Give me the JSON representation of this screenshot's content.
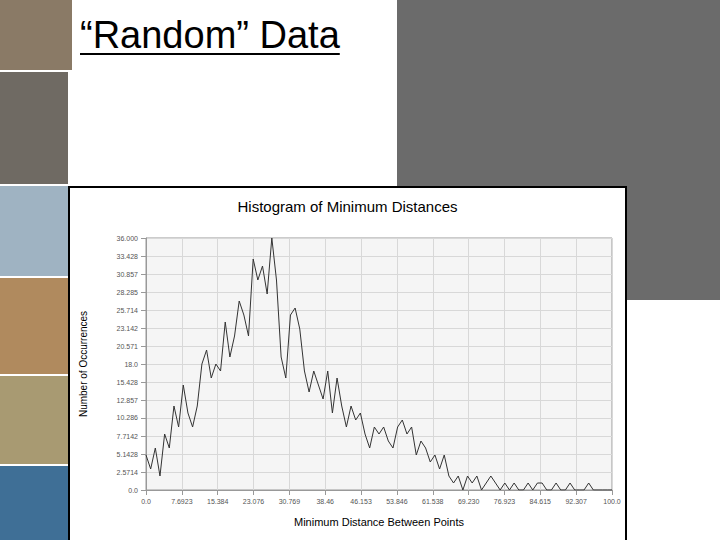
{
  "slide": {
    "title": "“Random” Data"
  },
  "chart_data": {
    "type": "line",
    "title": "Histogram of Minimum Distances",
    "xlabel": "Minimum Distance Between Points",
    "ylabel": "Number of Occurrences",
    "color": "#333333",
    "x": [
      0,
      1,
      2,
      3,
      4,
      5,
      6,
      7,
      8,
      9,
      10,
      11,
      12,
      13,
      14,
      15,
      16,
      17,
      18,
      19,
      20,
      21,
      22,
      23,
      24,
      25,
      26,
      27,
      28,
      29,
      30,
      31,
      32,
      33,
      34,
      35,
      36,
      37,
      38,
      39,
      40,
      41,
      42,
      43,
      44,
      45,
      46,
      47,
      48,
      49,
      50,
      51,
      52,
      53,
      54,
      55,
      56,
      57,
      58,
      59,
      60,
      61,
      62,
      63,
      64,
      65,
      66,
      67,
      68,
      69,
      70,
      71,
      72,
      73,
      74,
      75,
      76,
      77,
      78,
      79,
      80,
      81,
      82,
      83,
      84,
      85,
      86,
      87,
      88,
      89,
      90,
      91,
      92,
      93,
      94,
      95,
      96,
      97,
      98,
      99,
      100
    ],
    "values": [
      5,
      3,
      6,
      2,
      8,
      6,
      12,
      9,
      15,
      11,
      9,
      12,
      18,
      20,
      16,
      18,
      17,
      24,
      19,
      22,
      27,
      25,
      22,
      33,
      30,
      32,
      28,
      36,
      30,
      19,
      16,
      25,
      26,
      23,
      17,
      14,
      17,
      15,
      13,
      17,
      11,
      16,
      12,
      9,
      12,
      10,
      11,
      8,
      6,
      9,
      8,
      9,
      7,
      6,
      9,
      10,
      8,
      9,
      5,
      7,
      6,
      4,
      5,
      3,
      5,
      2,
      1,
      2,
      0,
      2,
      1,
      2,
      0,
      1,
      2,
      1,
      0,
      1,
      0,
      1,
      0,
      0,
      1,
      0,
      1,
      1,
      0,
      0,
      1,
      0,
      0,
      1,
      0,
      0,
      0,
      1,
      0,
      0,
      0,
      0,
      0
    ],
    "xlim": [
      0,
      100
    ],
    "ylim": [
      0,
      36
    ],
    "xticks": [
      {
        "value": 0,
        "label": "0.0"
      },
      {
        "value": 7.6923,
        "label": "7.6923"
      },
      {
        "value": 15.384,
        "label": "15.384"
      },
      {
        "value": 23.076,
        "label": "23.076"
      },
      {
        "value": 30.769,
        "label": "30.769"
      },
      {
        "value": 38.46,
        "label": "38.46"
      },
      {
        "value": 46.153,
        "label": "46.153"
      },
      {
        "value": 53.846,
        "label": "53.846"
      },
      {
        "value": 61.538,
        "label": "61.538"
      },
      {
        "value": 69.23,
        "label": "69.230"
      },
      {
        "value": 76.923,
        "label": "76.923"
      },
      {
        "value": 84.615,
        "label": "84.615"
      },
      {
        "value": 92.307,
        "label": "92.307"
      },
      {
        "value": 100,
        "label": "100.0"
      }
    ],
    "yticks": [
      {
        "value": 0,
        "label": "0.0"
      },
      {
        "value": 2.5714,
        "label": "2.5714"
      },
      {
        "value": 5.1428,
        "label": "5.1428"
      },
      {
        "value": 7.7142,
        "label": "7.7142"
      },
      {
        "value": 10.286,
        "label": "10.286"
      },
      {
        "value": 12.857,
        "label": "12.857"
      },
      {
        "value": 15.428,
        "label": "15.428"
      },
      {
        "value": 18,
        "label": "18.0"
      },
      {
        "value": 20.571,
        "label": "20.571"
      },
      {
        "value": 23.142,
        "label": "23.142"
      },
      {
        "value": 25.714,
        "label": "25.714"
      },
      {
        "value": 28.285,
        "label": "28.285"
      },
      {
        "value": 30.857,
        "label": "30.857"
      },
      {
        "value": 33.428,
        "label": "33.428"
      },
      {
        "value": 36,
        "label": "36.000"
      }
    ],
    "grid": true
  }
}
